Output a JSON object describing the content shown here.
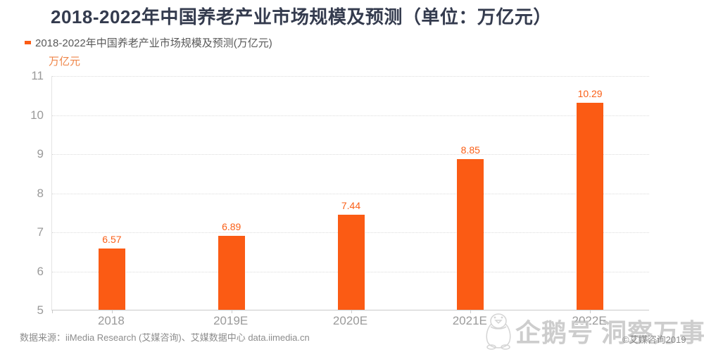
{
  "header": {
    "title": "2018-2022年中国养老产业市场规模及预测（单位：万亿元）"
  },
  "legend": {
    "label": "2018-2022年中国养老产业市场规模及预测(万亿元)"
  },
  "chart_data": {
    "type": "bar",
    "title": "2018-2022年中国养老产业市场规模及预测（单位：万亿元）",
    "categories": [
      "2018",
      "2019E",
      "2020E",
      "2021E",
      "2022E"
    ],
    "values": [
      6.57,
      6.89,
      7.44,
      8.85,
      10.29
    ],
    "xlabel": "",
    "ylabel": "万亿元",
    "ylim": [
      5,
      11
    ],
    "ytick_step": 1,
    "yticks": [
      5,
      6,
      7,
      8,
      9,
      10,
      11
    ],
    "grid": "horizontal-dotted",
    "legend_position": "top-left",
    "bar_labels_shown": true
  },
  "colors": {
    "bar": "#fb5b14",
    "value_label": "#fa5f17",
    "unit_label": "#ef8548",
    "title": "#343b4e",
    "axis_text": "#9a9a9a",
    "gridline": "#dcdcdc",
    "watermark": "#919191"
  },
  "footer": {
    "source": "数据来源：iiMedia Research (艾媒咨询)、艾媒数据中心 data.iimedia.cn"
  },
  "watermark": {
    "icon": "penguin-icon",
    "text": "企鹅号 洞察万事",
    "copyright": "©艾媒咨询2019"
  }
}
